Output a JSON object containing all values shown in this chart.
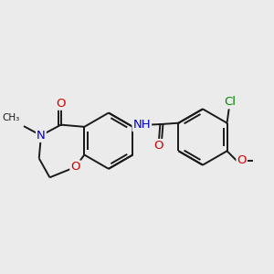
{
  "bg_color": "#ebebeb",
  "bond_color": "#1a1a1a",
  "atom_colors": {
    "O": "#cc0000",
    "N": "#0000cc",
    "Cl": "#008800",
    "C": "#1a1a1a"
  },
  "font_size": 9.5,
  "lw": 1.4,
  "figsize": [
    3.0,
    3.0
  ],
  "dpi": 100
}
